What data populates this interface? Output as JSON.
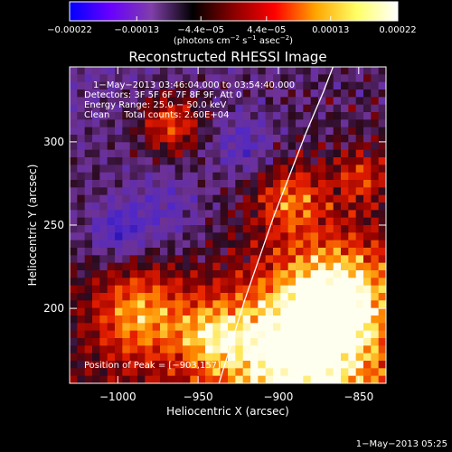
{
  "chart_data": {
    "type": "heatmap",
    "title": "Reconstructed RHESSI Image",
    "xlabel": "Heliocentric X (arcsec)",
    "ylabel": "Heliocentric Y (arcsec)",
    "xlim": [
      -1030,
      -833
    ],
    "ylim": [
      155,
      345
    ],
    "x_ticks": [
      -1000,
      -950,
      -900,
      -850
    ],
    "x_tick_labels": [
      "−1000",
      "−950",
      "−900",
      "−850"
    ],
    "y_ticks": [
      200,
      250,
      300
    ],
    "y_tick_labels": [
      "200",
      "250",
      "300"
    ],
    "colorbar": {
      "range": [
        -0.00022,
        0.00022
      ],
      "ticks": [
        -0.00022,
        -0.00013,
        -4.4e-05,
        4.4e-05,
        0.00013,
        0.00022
      ],
      "tick_labels": [
        "−0.00022",
        "−0.00013",
        "−4.4e−05",
        "4.4e−05",
        "0.00013",
        "0.00022"
      ],
      "units_main": "(photons cm",
      "units_exp1": "−2",
      "units_mid": " s",
      "units_exp2": "−1",
      "units_tail": " asec",
      "units_exp3": "−2",
      "units_close": ")",
      "colors": [
        "#0000ff",
        "#6a00ff",
        "#7f3fa8",
        "#000000",
        "#8b0000",
        "#ff0000",
        "#ffa500",
        "#ffff66",
        "#ffffff"
      ]
    },
    "annotations": {
      "time_range": "1−May−2013 03:46:04.000 to 03:54:40.000",
      "detectors": "Detectors: 3F 5F 6F 7F 8F 9F, Att 0",
      "energy": "Energy Range: 25.0 − 50.0 keV",
      "method": "Clean     Total counts: 2.60E+04",
      "peak": "Position of Peak = [−903,157]"
    },
    "peak_position": [
      -903,
      157
    ],
    "limb_curve": [
      [
        -937,
        155
      ],
      [
        -929,
        180
      ],
      [
        -921,
        205
      ],
      [
        -912,
        230
      ],
      [
        -903,
        255
      ],
      [
        -893,
        280
      ],
      [
        -883,
        305
      ],
      [
        -872,
        330
      ],
      [
        -866,
        345
      ]
    ]
  },
  "footer_timestamp": "1−May−2013 05:25"
}
